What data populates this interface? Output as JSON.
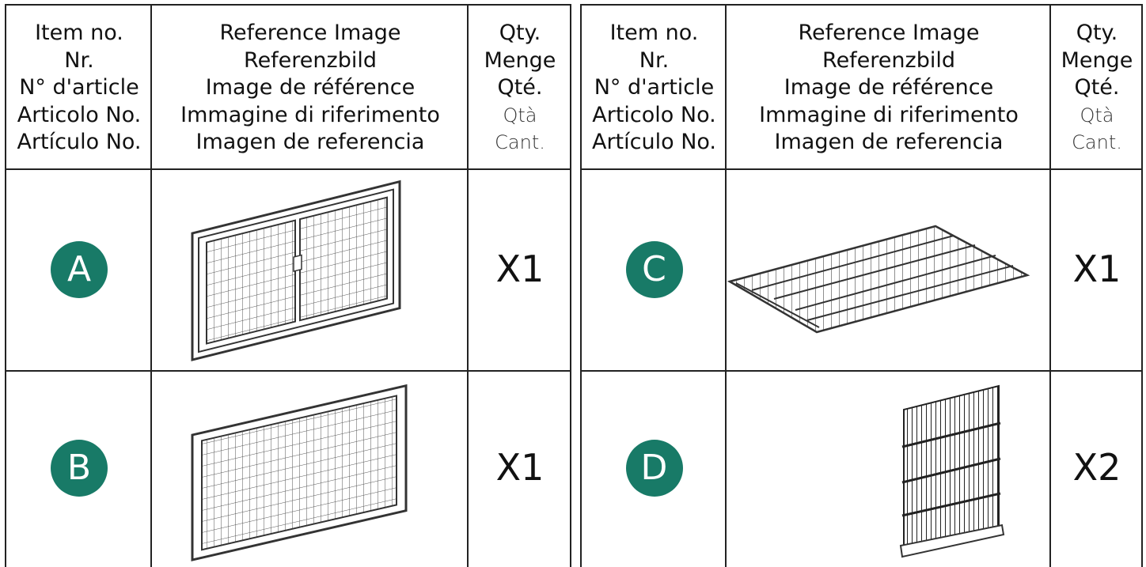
{
  "tables": [
    {
      "header": {
        "item": [
          "Item no.",
          "Nr.",
          "N° d'article",
          "Articolo No.",
          "Artículo No."
        ],
        "image": [
          "Reference Image",
          "Referenzbild",
          "Image de référence",
          "Immagine di riferimento",
          "Imagen de referencia"
        ],
        "qty": [
          "Qty.",
          "Menge",
          "Qté.",
          "Qtà",
          "Cant."
        ]
      },
      "rows": [
        {
          "item": "A",
          "qty": "X1"
        },
        {
          "item": "B",
          "qty": "X1"
        }
      ]
    },
    {
      "header": {
        "item": [
          "Item no.",
          "Nr.",
          "N° d'article",
          "Articolo No.",
          "Artículo No."
        ],
        "image": [
          "Reference Image",
          "Referenzbild",
          "Image de référence",
          "Immagine di riferimento",
          "Imagen de referencia"
        ],
        "qty": [
          "Qty.",
          "Menge",
          "Qté.",
          "Qtà",
          "Cant."
        ]
      },
      "rows": [
        {
          "item": "C",
          "qty": "X1"
        },
        {
          "item": "D",
          "qty": "X2"
        }
      ]
    }
  ]
}
